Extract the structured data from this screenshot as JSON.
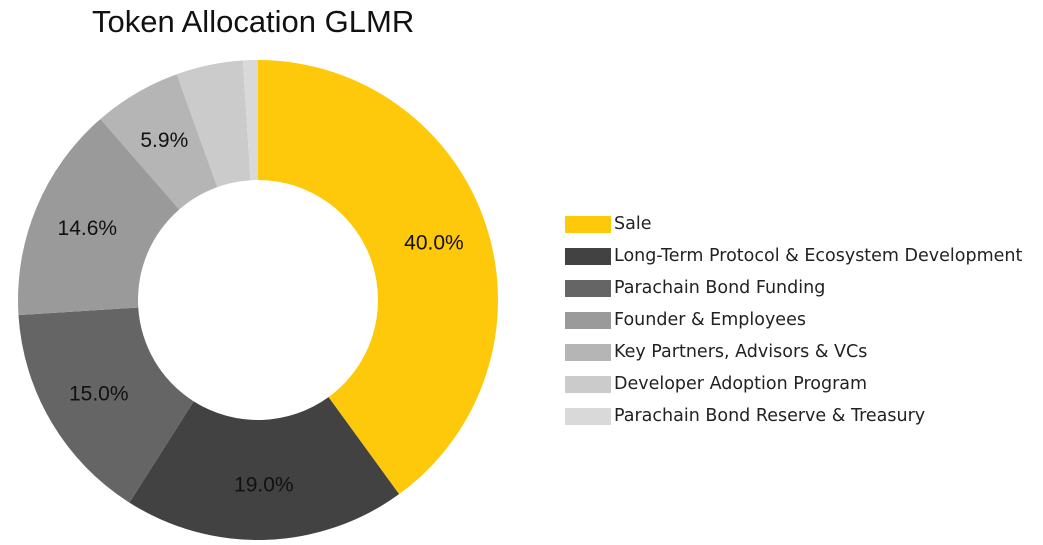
{
  "chart_data": {
    "type": "pie",
    "title": "Token Allocation GLMR",
    "categories": [
      "Sale",
      "Long-Term Protocol & Ecosystem Development",
      "Parachain Bond Funding",
      "Founder & Employees",
      "Key Partners, Advisors & VCs",
      "Developer Adoption Program",
      "Parachain Bond Reserve & Treasury"
    ],
    "values": [
      40.0,
      19.0,
      15.0,
      14.6,
      5.9,
      4.5,
      1.0
    ],
    "data_labels": [
      "40.0%",
      "19.0%",
      "15.0%",
      "14.6%",
      "5.9%",
      "",
      ""
    ],
    "colors": [
      "#FFC90B",
      "#424242",
      "#656565",
      "#9A9A9A",
      "#B5B5B5",
      "#CBCBCB",
      "#D9D9D9"
    ],
    "donut": true,
    "legend_position": "right"
  }
}
